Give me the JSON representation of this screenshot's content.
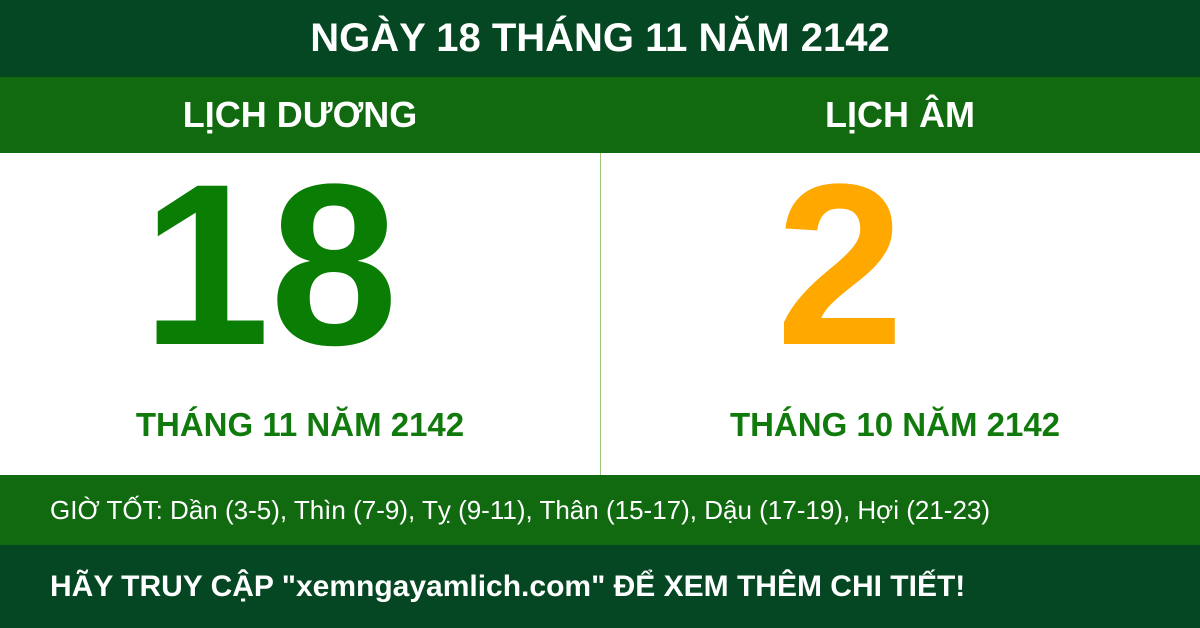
{
  "header": {
    "title": "NGÀY 18 THÁNG 11 NĂM 2142"
  },
  "solar": {
    "label": "LỊCH DƯƠNG",
    "day": "18",
    "month_year": "THÁNG 11 NĂM 2142",
    "color": "#0a7d05"
  },
  "lunar": {
    "label": "LỊCH ÂM",
    "day": "2",
    "month_year": "THÁNG 10 NĂM 2142",
    "color": "#ffa800"
  },
  "good_hours": "GIỜ TỐT: Dần (3-5), Thìn (7-9), Tỵ (9-11), Thân (15-17), Dậu (17-19), Hợi (21-23)",
  "footer": "HÃY TRUY CẬP \"xemngayamlich.com\" ĐỂ XEM THÊM CHI TIẾT!"
}
